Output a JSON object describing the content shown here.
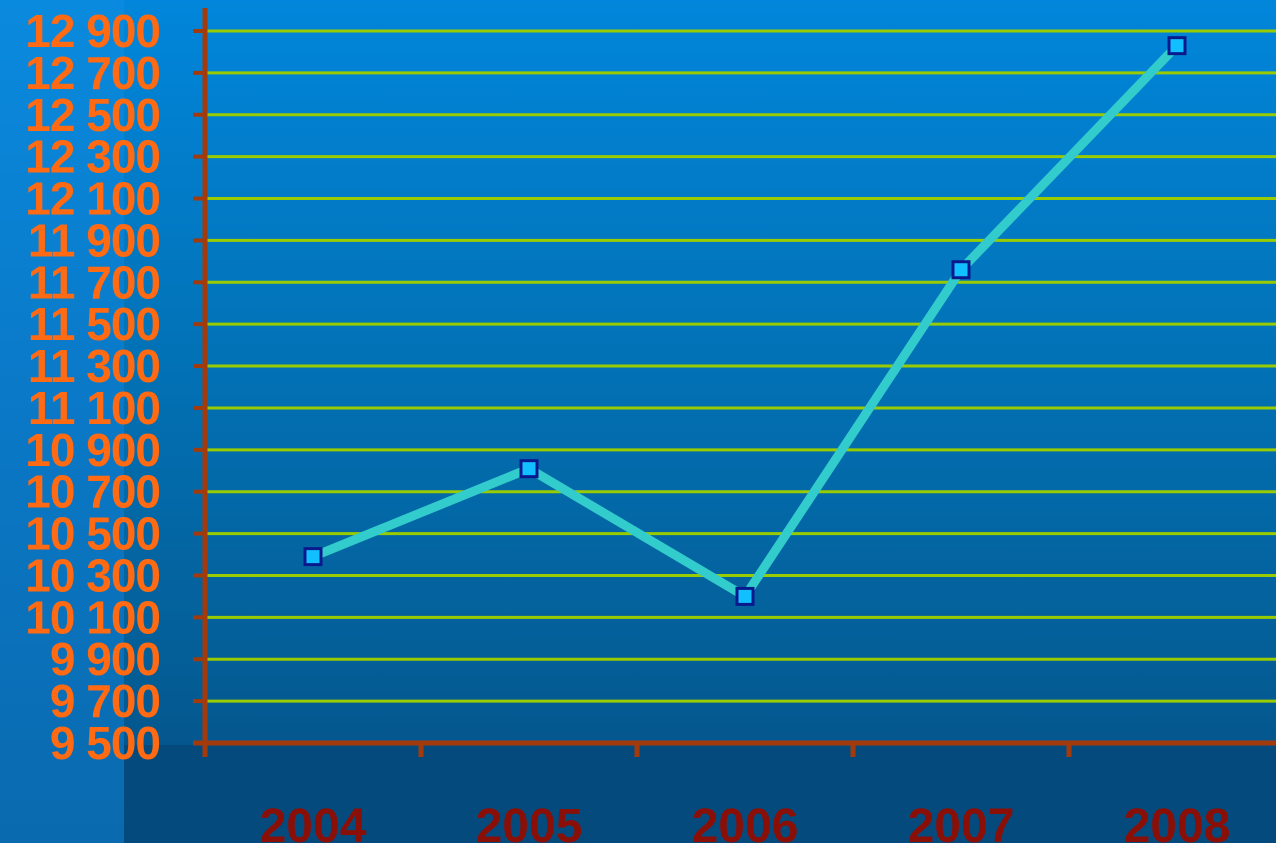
{
  "chart_data": {
    "type": "line",
    "title": "",
    "xlabel": "",
    "ylabel": "",
    "categories": [
      "2004",
      "2005",
      "2006",
      "2007",
      "2008"
    ],
    "series": [
      {
        "values": [
          10390,
          10810,
          10200,
          11760,
          12830
        ]
      }
    ],
    "ylim": [
      9500,
      12900
    ],
    "yticks": [
      9500,
      9700,
      9900,
      10100,
      10300,
      10500,
      10700,
      10900,
      11100,
      11300,
      11500,
      11700,
      11900,
      12100,
      12300,
      12500,
      12700,
      12900
    ],
    "ytick_labels": [
      "9 500",
      "9 700",
      "9 900",
      "10 100",
      "10 300",
      "10 500",
      "10 700",
      "10 900",
      "11 100",
      "11 300",
      "11 500",
      "11 700",
      "11 900",
      "12 100",
      "12 300",
      "12 500",
      "12 700",
      "12 900"
    ],
    "grid": true,
    "legend": "none"
  },
  "colors": {
    "line": "#33cccc",
    "marker_fill": "#12c0ff",
    "marker_edge": "#0a1a8c",
    "gridline": "#99cc00",
    "axis": "#a33a0c",
    "ytick_text": "#ff6a13",
    "xtick_text": "#8a0f07"
  }
}
